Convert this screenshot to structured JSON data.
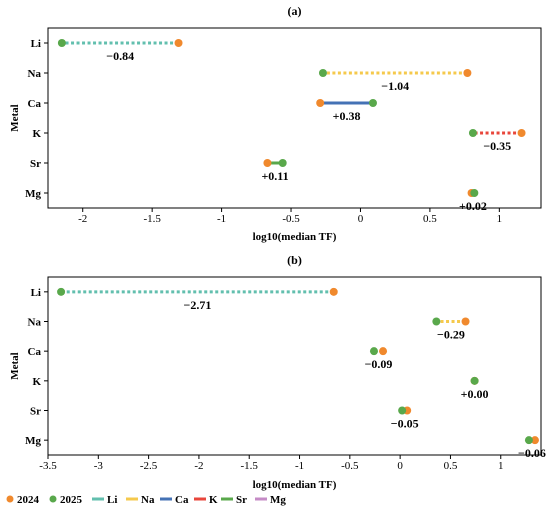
{
  "chart_data": [
    {
      "type": "dumbbell",
      "title": "(a)",
      "xlabel": "log10(median TF)",
      "ylabel": "Metal",
      "xlim": [
        -2.25,
        1.3
      ],
      "xticks": [
        "-2",
        "-1.5",
        "-1",
        "-0.5",
        "0",
        "0.5",
        "1"
      ],
      "xtick_values": [
        -2,
        -1.5,
        -1,
        -0.5,
        0,
        0.5,
        1
      ],
      "categories": [
        "Li",
        "Na",
        "Ca",
        "K",
        "Sr",
        "Mg"
      ],
      "series": [
        {
          "name": "2024",
          "values": [
            -1.31,
            0.77,
            -0.29,
            1.16,
            -0.67,
            0.8
          ]
        },
        {
          "name": "2025",
          "values": [
            -2.15,
            -0.27,
            0.09,
            0.81,
            -0.56,
            0.82
          ]
        }
      ],
      "deltas": [
        "−0.84",
        "−1.04",
        "+0.38",
        "−0.35",
        "+0.11",
        "+0.02"
      ],
      "grid": false
    },
    {
      "type": "dumbbell",
      "title": "(b)",
      "xlabel": "log10(median TF)",
      "ylabel": "Metal",
      "xlim": [
        -3.5,
        1.4
      ],
      "xticks": [
        "-3.5",
        "-3",
        "-2.5",
        "-2",
        "-1.5",
        "-1",
        "-0.5",
        "0",
        "0.5",
        "1"
      ],
      "xtick_values": [
        -3.5,
        -3,
        -2.5,
        -2,
        -1.5,
        -1,
        -0.5,
        0,
        0.5,
        1
      ],
      "categories": [
        "Li",
        "Na",
        "Ca",
        "K",
        "Sr",
        "Mg"
      ],
      "series": [
        {
          "name": "2024",
          "values": [
            -0.66,
            0.65,
            -0.17,
            0.74,
            0.07,
            1.34
          ]
        },
        {
          "name": "2025",
          "values": [
            -3.37,
            0.36,
            -0.26,
            0.74,
            0.02,
            1.28
          ]
        }
      ],
      "deltas": [
        "−2.71",
        "−0.29",
        "−0.09",
        "+0.00",
        "−0.05",
        "−0.06"
      ],
      "grid": false
    }
  ],
  "legend": {
    "placement": "bottom-left",
    "items": [
      {
        "label": "2024",
        "kind": "marker",
        "color": "#f0892d"
      },
      {
        "label": "2025",
        "kind": "marker",
        "color": "#59a84b"
      },
      {
        "label": "Li",
        "kind": "line",
        "color": "#62bfae"
      },
      {
        "label": "Na",
        "kind": "line",
        "color": "#f5c94c"
      },
      {
        "label": "Ca",
        "kind": "line",
        "color": "#4472b5"
      },
      {
        "label": "K",
        "kind": "line",
        "color": "#e8463b"
      },
      {
        "label": "Sr",
        "kind": "line",
        "color": "#59a84b"
      },
      {
        "label": "Mg",
        "kind": "line",
        "color": "#c58bc6"
      }
    ]
  },
  "colors": {
    "marker_2024": "#f0892d",
    "marker_2025": "#59a84b",
    "metal": {
      "Li": "#62bfae",
      "Na": "#f5c94c",
      "Ca": "#4472b5",
      "K": "#e8463b",
      "Sr": "#59a84b",
      "Mg": "#c58bc6"
    }
  }
}
